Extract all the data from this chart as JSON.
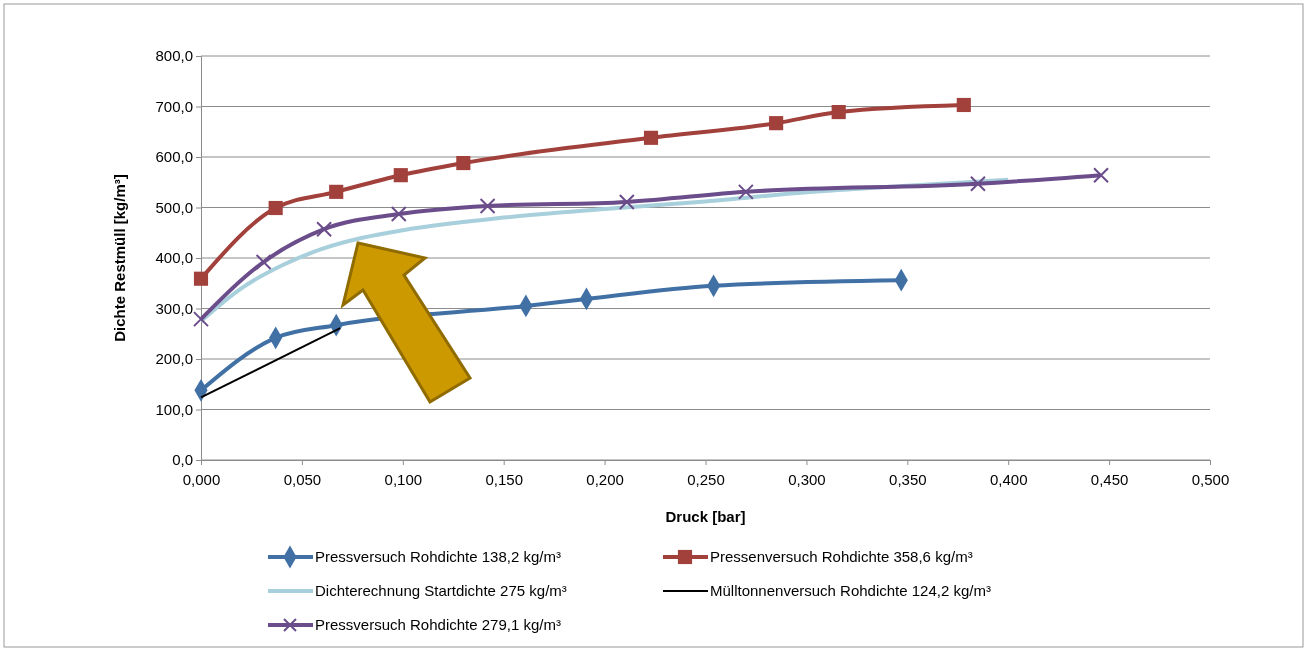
{
  "chart_data": {
    "type": "line",
    "xlabel": "Druck [bar]",
    "ylabel": "Dichte Restmüll [kg/m³]",
    "xlim": [
      0,
      0.5
    ],
    "xticks": [
      {
        "value": 0,
        "label": "0,000"
      },
      {
        "value": 0.05,
        "label": "0,050"
      },
      {
        "value": 0.1,
        "label": "0,100"
      },
      {
        "value": 0.15,
        "label": "0,150"
      },
      {
        "value": 0.2,
        "label": "0,200"
      },
      {
        "value": 0.25,
        "label": "0,250"
      },
      {
        "value": 0.3,
        "label": "0,300"
      },
      {
        "value": 0.35,
        "label": "0,350"
      },
      {
        "value": 0.4,
        "label": "0,400"
      },
      {
        "value": 0.45,
        "label": "0,450"
      },
      {
        "value": 0.5,
        "label": "0,500"
      }
    ],
    "ylim": [
      0,
      800
    ],
    "yticks": [
      {
        "value": 0,
        "label": "0,0"
      },
      {
        "value": 100,
        "label": "100,0"
      },
      {
        "value": 200,
        "label": "200,0"
      },
      {
        "value": 300,
        "label": "300,0"
      },
      {
        "value": 400,
        "label": "400,0"
      },
      {
        "value": 500,
        "label": "500,0"
      },
      {
        "value": 600,
        "label": "600,0"
      },
      {
        "value": 700,
        "label": "700,0"
      },
      {
        "value": 800,
        "label": "800,0"
      }
    ],
    "grid": "y",
    "legend": "bottom",
    "series": [
      {
        "name": "Pressversuch Rohdichte 138,2 kg/m³",
        "color": "#4170a5",
        "marker": "diamond",
        "x": [
          0,
          0.037,
          0.067,
          0.161,
          0.191,
          0.254,
          0.347
        ],
        "values": [
          138,
          242,
          267,
          305,
          319,
          345,
          356
        ]
      },
      {
        "name": "Pressenversuch Rohdichte 358,6 kg/m³",
        "color": "#a2403c",
        "marker": "square",
        "x": [
          0,
          0.037,
          0.067,
          0.099,
          0.13,
          0.223,
          0.285,
          0.316,
          0.378
        ],
        "values": [
          359,
          499,
          531,
          564,
          588,
          638,
          667,
          689,
          703
        ]
      },
      {
        "name": "Dichterechnung Startdichte 275 kg/m³",
        "color": "#a8cfdc",
        "marker": "none",
        "x": [
          0,
          0.02,
          0.04,
          0.06,
          0.08,
          0.1,
          0.15,
          0.2,
          0.25,
          0.3,
          0.35,
          0.4
        ],
        "values": [
          275,
          340,
          385,
          418,
          440,
          455,
          480,
          497,
          512,
          530,
          543,
          555
        ]
      },
      {
        "name": "Mülltonnenversuch Rohdichte 124,2 kg/m³",
        "color": "#000000",
        "marker": "none",
        "x": [
          0,
          0.069
        ],
        "values": [
          124,
          261
        ]
      },
      {
        "name": "Pressversuch Rohdichte 279,1 kg/m³",
        "color": "#6a4d8a",
        "marker": "cross",
        "x": [
          0,
          0.031,
          0.061,
          0.098,
          0.142,
          0.211,
          0.27,
          0.385,
          0.446
        ],
        "values": [
          279,
          392,
          457,
          487,
          503,
          511,
          531,
          547,
          564
        ]
      }
    ]
  }
}
